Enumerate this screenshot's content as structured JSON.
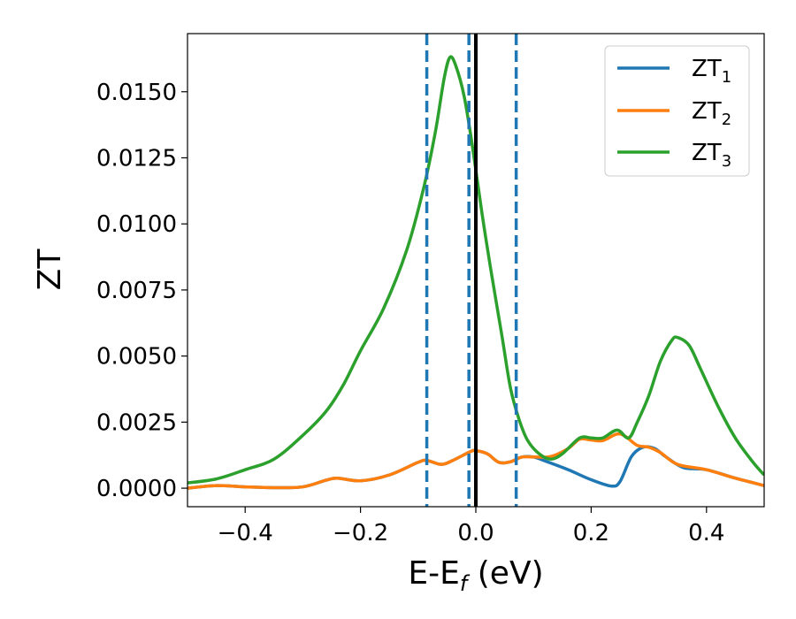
{
  "chart_data": {
    "type": "line",
    "xlabel_main": "E-E",
    "xlabel_sub": "f",
    "xlabel_tail": " (eV)",
    "ylabel": "ZT",
    "xlim": [
      -0.5,
      0.5
    ],
    "ylim": [
      -0.0007,
      0.0172
    ],
    "x_ticks": [
      -0.4,
      -0.2,
      0.0,
      0.2,
      0.4
    ],
    "x_tick_labels": [
      "−0.4",
      "−0.2",
      "0.0",
      "0.2",
      "0.4"
    ],
    "y_ticks": [
      0.0,
      0.0025,
      0.005,
      0.0075,
      0.01,
      0.0125,
      0.015
    ],
    "y_tick_labels": [
      "0.0000",
      "0.0025",
      "0.0050",
      "0.0075",
      "0.0100",
      "0.0125",
      "0.0150"
    ],
    "grid": false,
    "legend_position": "top-right",
    "vlines": [
      {
        "x": -0.085,
        "style": "dashed",
        "color": "#1f77b4"
      },
      {
        "x": -0.012,
        "style": "dashed",
        "color": "#1f77b4"
      },
      {
        "x": 0.0,
        "style": "solid",
        "color": "#000000"
      },
      {
        "x": 0.07,
        "style": "dashed",
        "color": "#1f77b4"
      }
    ],
    "series": [
      {
        "name_main": "ZT",
        "name_sub": "1",
        "color": "#1f77b4",
        "points": [
          [
            -0.5,
            0.0
          ],
          [
            -0.45,
            0.0001
          ],
          [
            -0.4,
            5e-05
          ],
          [
            -0.35,
            2e-05
          ],
          [
            -0.3,
            5e-05
          ],
          [
            -0.26,
            0.0003
          ],
          [
            -0.24,
            0.00038
          ],
          [
            -0.2,
            0.00028
          ],
          [
            -0.15,
            0.0005
          ],
          [
            -0.1,
            0.00098
          ],
          [
            -0.085,
            0.00105
          ],
          [
            -0.06,
            0.0009
          ],
          [
            -0.04,
            0.00105
          ],
          [
            -0.01,
            0.00138
          ],
          [
            0.0,
            0.00142
          ],
          [
            0.02,
            0.0013
          ],
          [
            0.04,
            0.00098
          ],
          [
            0.06,
            0.001
          ],
          [
            0.08,
            0.00118
          ],
          [
            0.1,
            0.00118
          ],
          [
            0.12,
            0.00103
          ],
          [
            0.16,
            0.0007
          ],
          [
            0.2,
            0.00032
          ],
          [
            0.235,
            8e-05
          ],
          [
            0.25,
            0.00025
          ],
          [
            0.27,
            0.0012
          ],
          [
            0.29,
            0.00155
          ],
          [
            0.31,
            0.0015
          ],
          [
            0.33,
            0.00118
          ],
          [
            0.36,
            0.00078
          ],
          [
            0.4,
            0.0007
          ],
          [
            0.45,
            0.00038
          ],
          [
            0.5,
            0.0001
          ]
        ]
      },
      {
        "name_main": "ZT",
        "name_sub": "2",
        "color": "#ff7f0e",
        "points": [
          [
            -0.5,
            0.0
          ],
          [
            -0.45,
            0.0001
          ],
          [
            -0.4,
            5e-05
          ],
          [
            -0.35,
            2e-05
          ],
          [
            -0.3,
            5e-05
          ],
          [
            -0.26,
            0.0003
          ],
          [
            -0.24,
            0.00038
          ],
          [
            -0.2,
            0.00028
          ],
          [
            -0.15,
            0.0005
          ],
          [
            -0.1,
            0.00098
          ],
          [
            -0.085,
            0.00105
          ],
          [
            -0.06,
            0.0009
          ],
          [
            -0.04,
            0.00105
          ],
          [
            -0.01,
            0.00138
          ],
          [
            0.0,
            0.00142
          ],
          [
            0.02,
            0.0013
          ],
          [
            0.04,
            0.00098
          ],
          [
            0.06,
            0.001
          ],
          [
            0.08,
            0.00118
          ],
          [
            0.1,
            0.00118
          ],
          [
            0.13,
            0.0012
          ],
          [
            0.16,
            0.0015
          ],
          [
            0.18,
            0.00185
          ],
          [
            0.2,
            0.00182
          ],
          [
            0.22,
            0.0018
          ],
          [
            0.245,
            0.00205
          ],
          [
            0.26,
            0.00195
          ],
          [
            0.28,
            0.00162
          ],
          [
            0.3,
            0.00155
          ],
          [
            0.32,
            0.00135
          ],
          [
            0.35,
            0.0009
          ],
          [
            0.4,
            0.0007
          ],
          [
            0.45,
            0.00038
          ],
          [
            0.5,
            0.0001
          ]
        ]
      },
      {
        "name_main": "ZT",
        "name_sub": "3",
        "color": "#2ca02c",
        "points": [
          [
            -0.5,
            0.0002
          ],
          [
            -0.45,
            0.00035
          ],
          [
            -0.4,
            0.0007
          ],
          [
            -0.35,
            0.0011
          ],
          [
            -0.3,
            0.002
          ],
          [
            -0.26,
            0.0029
          ],
          [
            -0.23,
            0.0039
          ],
          [
            -0.2,
            0.0052
          ],
          [
            -0.16,
            0.0068
          ],
          [
            -0.12,
            0.009
          ],
          [
            -0.09,
            0.0114
          ],
          [
            -0.07,
            0.0135
          ],
          [
            -0.055,
            0.0155
          ],
          [
            -0.045,
            0.0163
          ],
          [
            -0.035,
            0.016
          ],
          [
            -0.02,
            0.0148
          ],
          [
            -0.005,
            0.0128
          ],
          [
            0.01,
            0.0105
          ],
          [
            0.025,
            0.0084
          ],
          [
            0.045,
            0.0058
          ],
          [
            0.06,
            0.0038
          ],
          [
            0.075,
            0.0026
          ],
          [
            0.09,
            0.0018
          ],
          [
            0.11,
            0.0013
          ],
          [
            0.13,
            0.0011
          ],
          [
            0.15,
            0.0013
          ],
          [
            0.18,
            0.0019
          ],
          [
            0.2,
            0.0019
          ],
          [
            0.22,
            0.0019
          ],
          [
            0.245,
            0.0022
          ],
          [
            0.265,
            0.0019
          ],
          [
            0.28,
            0.0025
          ],
          [
            0.3,
            0.0035
          ],
          [
            0.32,
            0.0048
          ],
          [
            0.34,
            0.0056
          ],
          [
            0.35,
            0.0057
          ],
          [
            0.37,
            0.0054
          ],
          [
            0.39,
            0.0045
          ],
          [
            0.42,
            0.0031
          ],
          [
            0.45,
            0.0019
          ],
          [
            0.48,
            0.001
          ],
          [
            0.5,
            0.0005
          ]
        ]
      }
    ]
  }
}
